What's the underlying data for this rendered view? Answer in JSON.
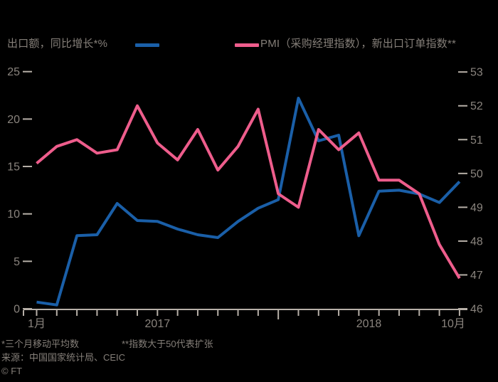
{
  "colors": {
    "background": "#000000",
    "export_line": "#1a5fa8",
    "pmi_line": "#ee5d8c",
    "axis": "#b7b0a8",
    "label_text": "#8a847e",
    "note_text": "#857f79"
  },
  "legend": {
    "export_label": "出口额，同比增长*%",
    "pmi_label": "PMI（采购经理指数），新出口订单指数**"
  },
  "footnotes": {
    "note1": "*三个月移动平均数",
    "note2": "**指数大于50代表扩张",
    "source": "来源：中国国家统计局、CEIC",
    "copyright": "© FT"
  },
  "chart_data": {
    "type": "line",
    "title": "",
    "grid": false,
    "legend_position": "top",
    "categories": [
      "2017-01",
      "2017-02",
      "2017-03",
      "2017-04",
      "2017-05",
      "2017-06",
      "2017-07",
      "2017-08",
      "2017-09",
      "2017-10",
      "2017-11",
      "2017-12",
      "2018-01",
      "2018-02",
      "2018-03",
      "2018-04",
      "2018-05",
      "2018-06",
      "2018-07",
      "2018-08",
      "2018-09",
      "2018-10"
    ],
    "series": [
      {
        "name": "出口额，同比增长*%",
        "axis": "left",
        "color": "#1a5fa8",
        "values": [
          0.7,
          0.4,
          7.7,
          7.8,
          11.1,
          9.3,
          9.2,
          8.4,
          7.8,
          7.5,
          9.2,
          10.6,
          11.5,
          22.2,
          17.7,
          18.3,
          7.7,
          12.4,
          12.5,
          12.1,
          11.2,
          13.4
        ]
      },
      {
        "name": "PMI（采购经理指数），新出口订单指数**",
        "axis": "right",
        "color": "#ee5d8c",
        "values": [
          50.3,
          50.8,
          51.0,
          50.6,
          50.7,
          52.0,
          50.9,
          50.4,
          51.3,
          50.1,
          50.8,
          51.9,
          49.4,
          49.0,
          51.3,
          50.7,
          51.2,
          49.8,
          49.8,
          49.4,
          47.9,
          46.9
        ]
      }
    ],
    "left_axis": {
      "label": "出口额，同比增长*%",
      "min": 0,
      "max": 25,
      "ticks": [
        25,
        20,
        15,
        10,
        5,
        0
      ]
    },
    "right_axis": {
      "label": "PMI新出口订单指数",
      "min": 46,
      "max": 53,
      "ticks": [
        53,
        52,
        51,
        50,
        49,
        48,
        47,
        46
      ]
    },
    "x_axis": {
      "tick_unit": "month",
      "year_boundary_index": 12,
      "labels": [
        {
          "text": "1月",
          "anchor": "middle",
          "month": 0
        },
        {
          "text": "2017",
          "anchor": "middle",
          "between": [
            0,
            12
          ]
        },
        {
          "text": "2018",
          "anchor": "middle",
          "between": [
            12,
            21
          ]
        },
        {
          "text": "10月",
          "anchor": "end",
          "month": 21
        }
      ]
    }
  }
}
